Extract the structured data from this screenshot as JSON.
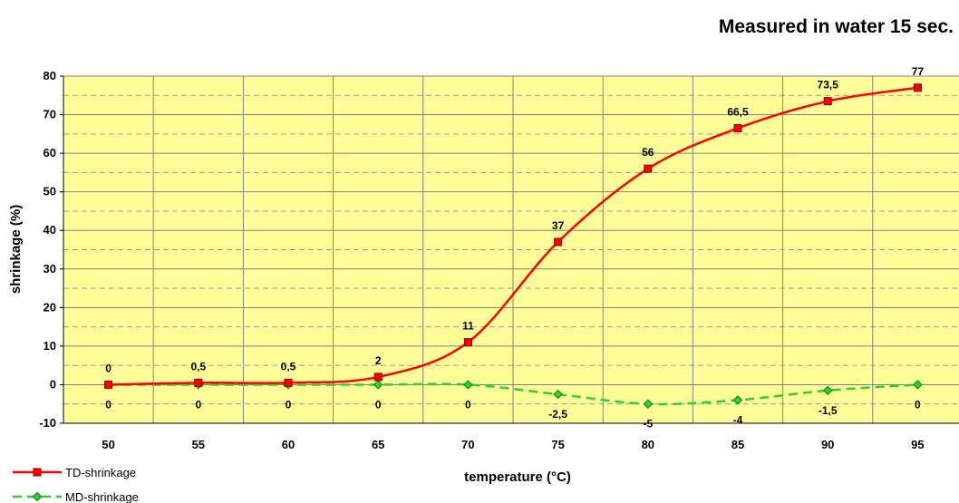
{
  "chart_data": {
    "type": "line",
    "title": "Measured in water 15 sec.",
    "xlabel": "temperature (°C)",
    "ylabel": "shrinkage (%)",
    "categories": [
      "50",
      "55",
      "60",
      "65",
      "70",
      "75",
      "80",
      "85",
      "90",
      "95"
    ],
    "x": [
      50,
      55,
      60,
      65,
      70,
      75,
      80,
      85,
      90,
      95
    ],
    "ylim": [
      -10,
      80
    ],
    "yticks": [
      -10,
      0,
      10,
      20,
      30,
      40,
      50,
      60,
      70,
      80
    ],
    "grid": true,
    "legend_position": "bottom-left",
    "plot_background": "#FFFF99",
    "series": [
      {
        "name": "TD-shrinkage",
        "values": [
          0,
          0.5,
          0.5,
          2,
          11,
          37,
          56,
          66.5,
          73.5,
          77
        ],
        "labels": [
          "0",
          "0,5",
          "0,5",
          "2",
          "11",
          "37",
          "56",
          "66,5",
          "73,5",
          "77"
        ],
        "color": "#FF0000",
        "marker": "square",
        "line_style": "solid"
      },
      {
        "name": "MD-shrinkage",
        "values": [
          0,
          0,
          0,
          0,
          0,
          -2.5,
          -5,
          -4,
          -1.5,
          0
        ],
        "labels": [
          "0",
          "0",
          "0",
          "0",
          "0",
          "-2,5",
          "-5",
          "-4",
          "-1,5",
          "0"
        ],
        "color": "#33CC33",
        "marker": "diamond",
        "line_style": "dashed"
      }
    ]
  }
}
